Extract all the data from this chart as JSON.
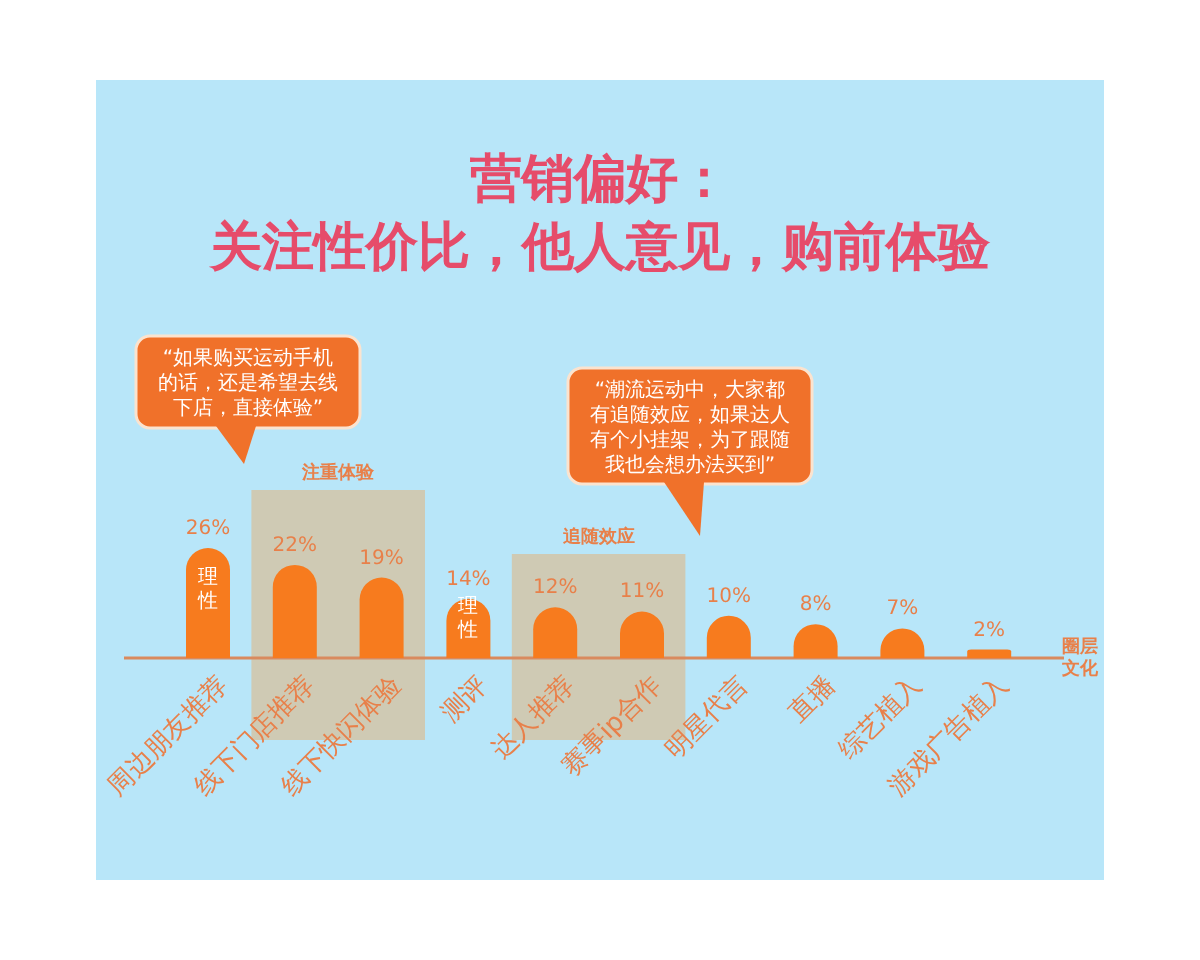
{
  "chart_data": {
    "type": "bar",
    "title": "营销偏好：",
    "subtitle": "关注性价比，他人意见，购前体验",
    "categories": [
      "周边朋友推荐",
      "线下门店推荐",
      "线下快闪体验",
      "测评",
      "达人推荐",
      "赛事ip合作",
      "明星代言",
      "直播",
      "综艺植入",
      "游戏广告植入"
    ],
    "values": [
      26,
      22,
      19,
      14,
      12,
      11,
      10,
      8,
      7,
      2
    ],
    "value_labels": [
      "26%",
      "22%",
      "19%",
      "14%",
      "12%",
      "11%",
      "10%",
      "8%",
      "7%",
      "2%"
    ],
    "color": "#f77b1e",
    "annotations": [
      "“如果购买运动手机的话，还是希望去线下店，直接体验”",
      "“潮流运动中，大家都有追随效应，如果达人有个小挂架，为了跟随我也会想办法买到”",
      "注重体验",
      "追随效应",
      "圈层文化",
      {
        "text": "理性",
        "x": "周边朋友推荐",
        "y": 15
      },
      {
        "text": "理性",
        "x": "测评",
        "y": 8
      }
    ]
  }
}
